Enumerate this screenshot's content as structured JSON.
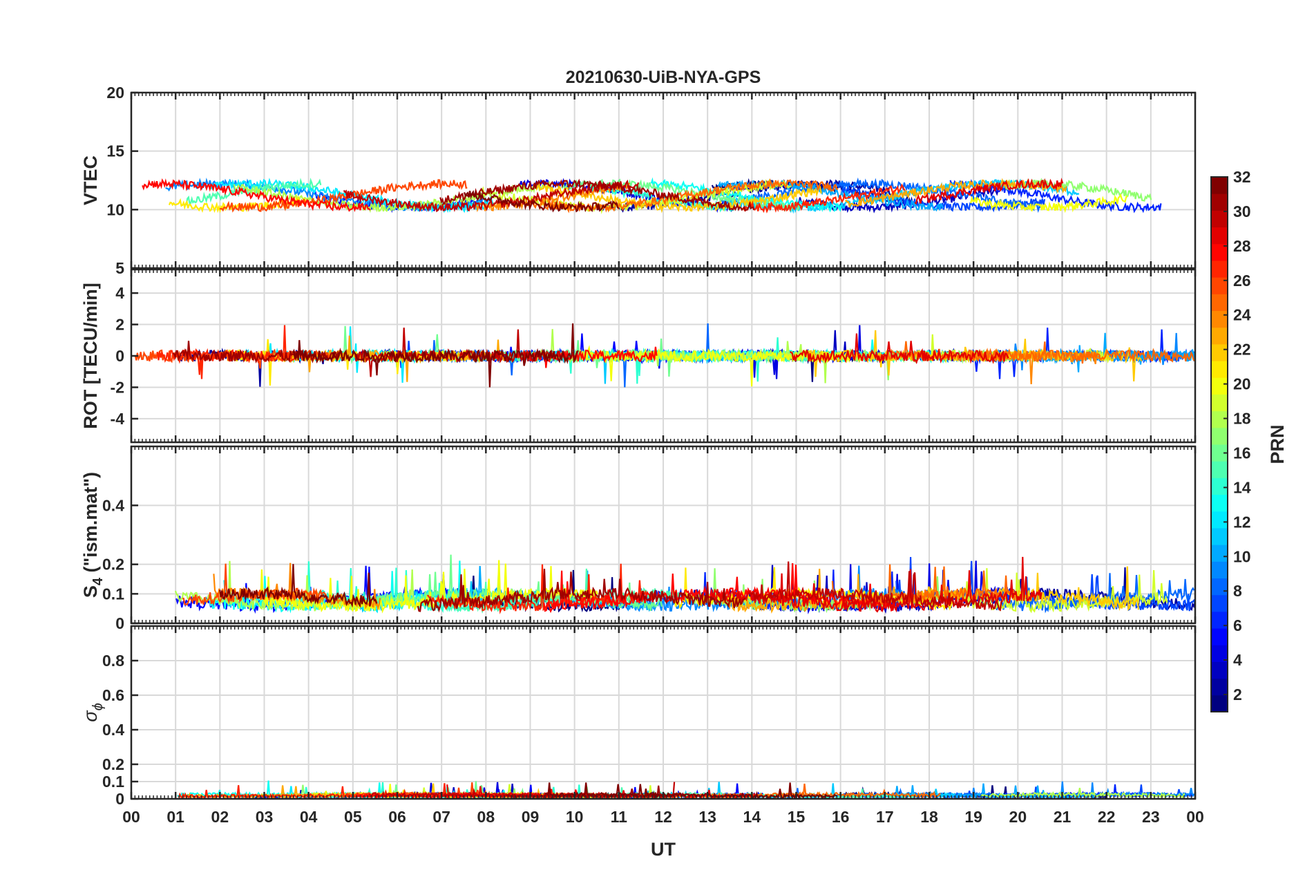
{
  "chart_data": {
    "type": "line",
    "title": "20210630-UiB-NYA-GPS",
    "xlabel": "UT",
    "x_tick_labels": [
      "00",
      "01",
      "02",
      "03",
      "04",
      "05",
      "06",
      "07",
      "08",
      "09",
      "10",
      "11",
      "12",
      "13",
      "14",
      "15",
      "16",
      "17",
      "18",
      "19",
      "20",
      "21",
      "22",
      "23",
      "00"
    ],
    "xlim": [
      0,
      24
    ],
    "grid": true,
    "colorbar": {
      "label": "PRN",
      "colormap": "jet",
      "range": [
        1,
        32
      ],
      "ticks": [
        "2",
        "4",
        "6",
        "8",
        "10",
        "12",
        "14",
        "16",
        "18",
        "20",
        "22",
        "24",
        "26",
        "28",
        "30",
        "32"
      ]
    },
    "panels": [
      {
        "ylabel": "VTEC",
        "ylim": [
          5,
          20
        ],
        "y_tick_labels": [
          "5",
          "10",
          "15",
          "20"
        ],
        "baseline": 11.2,
        "amplitude": 1.0,
        "noise": 0.35
      },
      {
        "ylabel": "ROT [TECU/min]",
        "ylim": [
          -5.5,
          5.5
        ],
        "y_tick_labels": [
          "-4",
          "-2",
          "0",
          "2",
          "4"
        ],
        "baseline": 0,
        "amplitude": 0.0,
        "noise": 0.35
      },
      {
        "ylabel_base": "S",
        "ylabel_sub": "4",
        "ylabel_rest": " (\"ism.mat\")",
        "ylim": [
          0,
          0.6
        ],
        "y_tick_labels": [
          "0",
          "0.1",
          "0.2",
          "0.4"
        ],
        "baseline": 0.08,
        "amplitude": 0.02,
        "noise": 0.02
      },
      {
        "ylabel_base": "σ",
        "ylabel_sub": "ϕ",
        "ylim": [
          0,
          1
        ],
        "y_tick_labels": [
          "0",
          "0.1",
          "0.2",
          "0.4",
          "0.6",
          "0.8"
        ],
        "baseline": 0.02,
        "amplitude": 0.005,
        "noise": 0.01
      }
    ],
    "series_note": "Curves drawn per satellite PRN 1–32, colored by PRN via colorbar"
  }
}
